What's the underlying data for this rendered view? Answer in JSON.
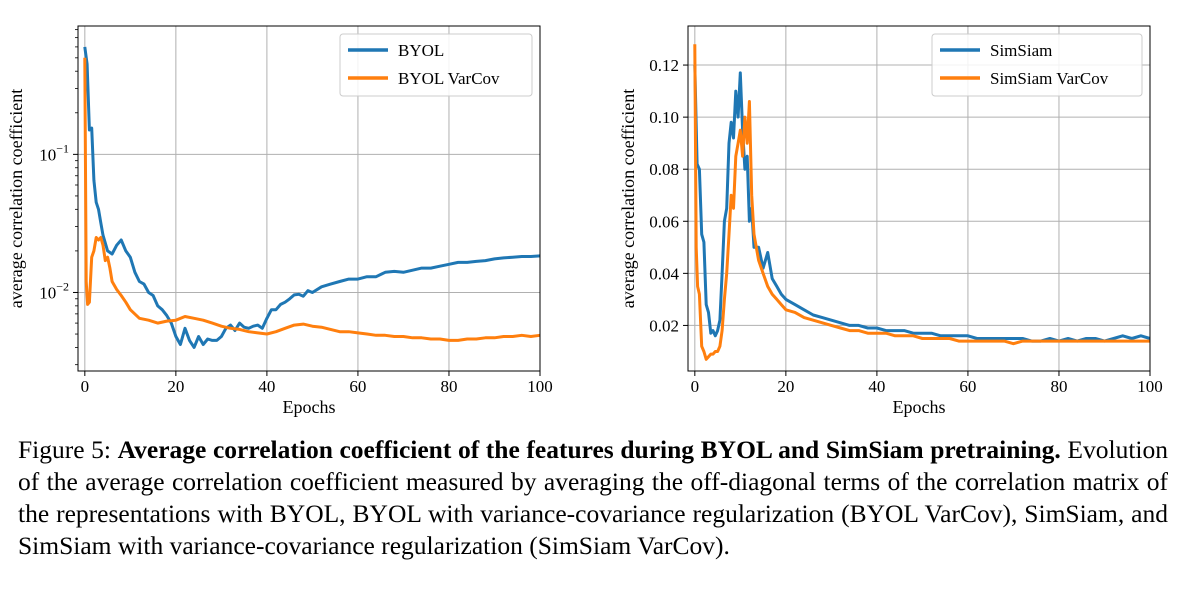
{
  "chart_data": [
    {
      "type": "line",
      "title": "",
      "xlabel": "Epochs",
      "ylabel": "average correlation coefficient",
      "yscale": "log",
      "xlim": [
        -1.5,
        100
      ],
      "ylim": [
        0.0027,
        0.85
      ],
      "xticks": [
        0,
        20,
        40,
        60,
        80,
        100
      ],
      "xtick_labels": [
        "0",
        "20",
        "40",
        "60",
        "80",
        "100"
      ],
      "yticks": [
        0.1,
        0.01
      ],
      "ytick_labels": [
        {
          "base": "10",
          "exp": "−1"
        },
        {
          "base": "10",
          "exp": "−2"
        }
      ],
      "grid": true,
      "legend": "top-right",
      "series": [
        {
          "name": "BYOL",
          "color": "#1f77b4",
          "x": [
            0,
            0.5,
            1,
            1.5,
            2,
            2.5,
            3,
            3.5,
            4,
            5,
            6,
            7,
            8,
            9,
            10,
            11,
            12,
            13,
            14,
            15,
            16,
            17,
            18,
            19,
            20,
            21,
            22,
            23,
            24,
            25,
            26,
            27,
            28,
            29,
            30,
            31,
            32,
            33,
            34,
            35,
            36,
            37,
            38,
            39,
            40,
            41,
            42,
            43,
            44,
            45,
            46,
            47,
            48,
            49,
            50,
            52,
            54,
            56,
            58,
            60,
            62,
            64,
            66,
            68,
            70,
            72,
            74,
            76,
            78,
            80,
            82,
            84,
            86,
            88,
            90,
            92,
            94,
            96,
            98,
            100
          ],
          "y": [
            0.6,
            0.45,
            0.15,
            0.155,
            0.065,
            0.045,
            0.04,
            0.032,
            0.026,
            0.02,
            0.019,
            0.022,
            0.024,
            0.02,
            0.018,
            0.014,
            0.012,
            0.0115,
            0.01,
            0.0095,
            0.008,
            0.0075,
            0.0068,
            0.006,
            0.0048,
            0.0042,
            0.0055,
            0.0045,
            0.004,
            0.0048,
            0.0042,
            0.0046,
            0.0045,
            0.0045,
            0.0048,
            0.0055,
            0.0058,
            0.0053,
            0.006,
            0.0056,
            0.0055,
            0.0057,
            0.0058,
            0.0055,
            0.0065,
            0.0075,
            0.0075,
            0.0082,
            0.0085,
            0.009,
            0.0096,
            0.0097,
            0.0094,
            0.0103,
            0.01,
            0.011,
            0.0115,
            0.012,
            0.0125,
            0.0125,
            0.013,
            0.013,
            0.014,
            0.0142,
            0.014,
            0.0145,
            0.015,
            0.015,
            0.0155,
            0.016,
            0.0165,
            0.0165,
            0.0168,
            0.017,
            0.0175,
            0.0178,
            0.018,
            0.0182,
            0.0182,
            0.0184
          ]
        },
        {
          "name": "BYOL VarCov",
          "color": "#ff7f0e",
          "x": [
            0,
            0.3,
            0.6,
            1,
            1.5,
            2,
            2.5,
            3,
            3.5,
            4,
            4.5,
            5,
            5.5,
            6,
            7,
            8,
            9,
            10,
            12,
            14,
            16,
            18,
            20,
            22,
            24,
            26,
            28,
            30,
            32,
            34,
            36,
            38,
            40,
            42,
            44,
            46,
            48,
            50,
            52,
            54,
            56,
            58,
            60,
            62,
            64,
            66,
            68,
            70,
            72,
            74,
            76,
            78,
            80,
            82,
            84,
            86,
            88,
            90,
            92,
            94,
            96,
            98,
            100
          ],
          "y": [
            0.5,
            0.012,
            0.0082,
            0.0085,
            0.018,
            0.02,
            0.025,
            0.024,
            0.025,
            0.022,
            0.017,
            0.018,
            0.015,
            0.012,
            0.0105,
            0.0095,
            0.0085,
            0.0075,
            0.0065,
            0.0063,
            0.006,
            0.0062,
            0.0063,
            0.0067,
            0.0065,
            0.0063,
            0.006,
            0.0057,
            0.0055,
            0.0054,
            0.0052,
            0.0051,
            0.005,
            0.0052,
            0.0055,
            0.0058,
            0.0059,
            0.0057,
            0.0056,
            0.0054,
            0.0052,
            0.0052,
            0.0051,
            0.005,
            0.0049,
            0.0049,
            0.0048,
            0.0048,
            0.0047,
            0.0047,
            0.0046,
            0.0046,
            0.0045,
            0.0045,
            0.0046,
            0.0046,
            0.0047,
            0.0047,
            0.0048,
            0.0048,
            0.0049,
            0.0048,
            0.0049
          ]
        }
      ]
    },
    {
      "type": "line",
      "title": "",
      "xlabel": "Epochs",
      "ylabel": "average correlation coefficient",
      "yscale": "linear",
      "xlim": [
        -1.5,
        100
      ],
      "ylim": [
        0.0025,
        0.135
      ],
      "xticks": [
        0,
        20,
        40,
        60,
        80,
        100
      ],
      "xtick_labels": [
        "0",
        "20",
        "40",
        "60",
        "80",
        "100"
      ],
      "yticks": [
        0.02,
        0.04,
        0.06,
        0.08,
        0.1,
        0.12
      ],
      "ytick_labels": [
        "0.02",
        "0.04",
        "0.06",
        "0.08",
        "0.10",
        "0.12"
      ],
      "grid": true,
      "legend": "top-right",
      "series": [
        {
          "name": "SimSiam",
          "color": "#1f77b4",
          "x": [
            0,
            0.5,
            1,
            1.5,
            2,
            2.5,
            3,
            3.5,
            4,
            4.5,
            5,
            5.5,
            6,
            6.5,
            7,
            7.5,
            8,
            8.5,
            9,
            9.5,
            10,
            10.5,
            11,
            11.5,
            12,
            12.5,
            13,
            14,
            15,
            16,
            17,
            18,
            19,
            20,
            22,
            24,
            26,
            28,
            30,
            32,
            34,
            36,
            38,
            40,
            42,
            44,
            46,
            48,
            50,
            52,
            54,
            56,
            58,
            60,
            62,
            64,
            66,
            68,
            70,
            72,
            74,
            76,
            78,
            80,
            82,
            84,
            86,
            88,
            90,
            92,
            94,
            96,
            98,
            100
          ],
          "y": [
            0.12,
            0.082,
            0.08,
            0.055,
            0.052,
            0.028,
            0.025,
            0.017,
            0.018,
            0.016,
            0.018,
            0.022,
            0.04,
            0.06,
            0.065,
            0.09,
            0.098,
            0.092,
            0.11,
            0.1,
            0.117,
            0.095,
            0.08,
            0.085,
            0.06,
            0.065,
            0.05,
            0.05,
            0.042,
            0.048,
            0.038,
            0.035,
            0.032,
            0.03,
            0.028,
            0.026,
            0.024,
            0.023,
            0.022,
            0.021,
            0.02,
            0.02,
            0.019,
            0.019,
            0.018,
            0.018,
            0.018,
            0.017,
            0.017,
            0.017,
            0.016,
            0.016,
            0.016,
            0.016,
            0.015,
            0.015,
            0.015,
            0.015,
            0.015,
            0.015,
            0.014,
            0.014,
            0.015,
            0.014,
            0.015,
            0.014,
            0.015,
            0.015,
            0.014,
            0.015,
            0.016,
            0.015,
            0.016,
            0.015
          ]
        },
        {
          "name": "SimSiam VarCov",
          "color": "#ff7f0e",
          "x": [
            0,
            0.3,
            0.6,
            1,
            1.5,
            2,
            2.5,
            3,
            3.5,
            4,
            4.5,
            5,
            5.5,
            6,
            6.5,
            7,
            7.5,
            8,
            8.5,
            9,
            9.5,
            10,
            10.5,
            11,
            11.5,
            12,
            12.5,
            13,
            14,
            15,
            16,
            17,
            18,
            19,
            20,
            22,
            24,
            26,
            28,
            30,
            32,
            34,
            36,
            38,
            40,
            42,
            44,
            46,
            48,
            50,
            52,
            54,
            56,
            58,
            60,
            62,
            64,
            66,
            68,
            70,
            72,
            74,
            76,
            78,
            80,
            82,
            84,
            86,
            88,
            90,
            92,
            94,
            96,
            98,
            100
          ],
          "y": [
            0.128,
            0.05,
            0.035,
            0.032,
            0.012,
            0.01,
            0.007,
            0.008,
            0.009,
            0.009,
            0.01,
            0.01,
            0.012,
            0.018,
            0.03,
            0.04,
            0.055,
            0.07,
            0.065,
            0.085,
            0.09,
            0.095,
            0.085,
            0.1,
            0.09,
            0.106,
            0.07,
            0.055,
            0.045,
            0.04,
            0.035,
            0.032,
            0.03,
            0.028,
            0.026,
            0.025,
            0.023,
            0.022,
            0.021,
            0.02,
            0.019,
            0.018,
            0.018,
            0.017,
            0.017,
            0.017,
            0.016,
            0.016,
            0.016,
            0.015,
            0.015,
            0.015,
            0.015,
            0.014,
            0.014,
            0.014,
            0.014,
            0.014,
            0.014,
            0.013,
            0.014,
            0.014,
            0.014,
            0.014,
            0.014,
            0.014,
            0.014,
            0.014,
            0.014,
            0.014,
            0.014,
            0.014,
            0.014,
            0.014,
            0.014
          ]
        }
      ]
    }
  ],
  "caption": {
    "prefix": "Figure 5: ",
    "bold": "Average correlation coefficient of the features during BYOL and SimSiam pretraining.",
    "body": " Evolution of the average correlation coefficient measured by averaging the off-diagonal terms of the correlation matrix of the representations with BYOL, BYOL with variance-covariance regularization (BYOL VarCov), SimSiam, and SimSiam with variance-covariance regularization (SimSiam VarCov)."
  }
}
